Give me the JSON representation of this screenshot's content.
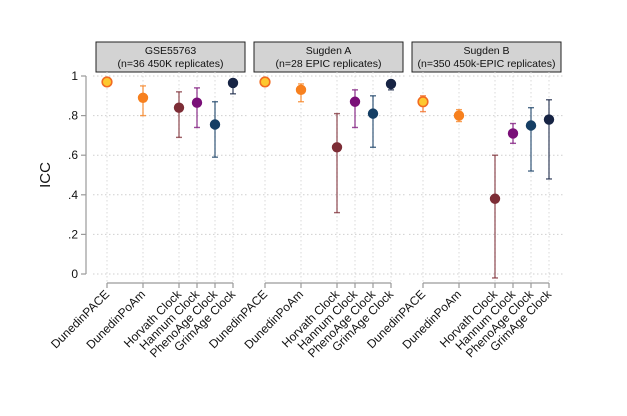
{
  "chart_data": {
    "type": "scatter",
    "subtype": "point-with-error-bars, faceted",
    "ylabel": "ICC",
    "xlabel": "",
    "ylim": [
      0,
      1
    ],
    "yticks": [
      {
        "value": 0,
        "label": "0"
      },
      {
        "value": 0.2,
        "label": ".2"
      },
      {
        "value": 0.4,
        "label": ".4"
      },
      {
        "value": 0.6,
        "label": ".6"
      },
      {
        "value": 0.8,
        "label": ".8"
      },
      {
        "value": 1,
        "label": "1"
      }
    ],
    "grid": true,
    "categories": [
      "DunedinPACE",
      "DunedinPoAm",
      "Horvath Clock",
      "Hannum Clock",
      "PhenoAge Clock",
      "GrimAge Clock"
    ],
    "category_positions": [
      0,
      2,
      4,
      5,
      6,
      7
    ],
    "colors": {
      "DunedinPACE": {
        "fill": "#fdc82f",
        "stroke": "#f26b21"
      },
      "DunedinPoAm": {
        "fill": "#f7801e",
        "stroke": "#f7801e"
      },
      "Horvath Clock": {
        "fill": "#7d2d36",
        "stroke": "#7d2d36"
      },
      "Hannum Clock": {
        "fill": "#7a0f78",
        "stroke": "#7a0f78"
      },
      "PhenoAge Clock": {
        "fill": "#153e64",
        "stroke": "#153e64"
      },
      "GrimAge Clock": {
        "fill": "#172444",
        "stroke": "#172444"
      }
    },
    "panels": [
      {
        "title_line1": "GSE55763",
        "title_line2": "(n=36 450K replicates)",
        "points": [
          {
            "category": "DunedinPACE",
            "icc": 0.97,
            "lower": 0.95,
            "upper": 0.98
          },
          {
            "category": "DunedinPoAm",
            "icc": 0.89,
            "lower": 0.8,
            "upper": 0.95
          },
          {
            "category": "Horvath Clock",
            "icc": 0.84,
            "lower": 0.69,
            "upper": 0.92
          },
          {
            "category": "Hannum Clock",
            "icc": 0.865,
            "lower": 0.74,
            "upper": 0.94
          },
          {
            "category": "PhenoAge Clock",
            "icc": 0.755,
            "lower": 0.59,
            "upper": 0.87
          },
          {
            "category": "GrimAge Clock",
            "icc": 0.965,
            "lower": 0.91,
            "upper": 0.98
          }
        ]
      },
      {
        "title_line1": "Sugden A",
        "title_line2": "(n=28 EPIC replicates)",
        "points": [
          {
            "category": "DunedinPACE",
            "icc": 0.97,
            "lower": 0.95,
            "upper": 0.98
          },
          {
            "category": "DunedinPoAm",
            "icc": 0.93,
            "lower": 0.87,
            "upper": 0.96
          },
          {
            "category": "Horvath Clock",
            "icc": 0.64,
            "lower": 0.31,
            "upper": 0.81
          },
          {
            "category": "Hannum Clock",
            "icc": 0.87,
            "lower": 0.74,
            "upper": 0.93
          },
          {
            "category": "PhenoAge Clock",
            "icc": 0.81,
            "lower": 0.64,
            "upper": 0.9
          },
          {
            "category": "GrimAge Clock",
            "icc": 0.96,
            "lower": 0.93,
            "upper": 0.97
          }
        ]
      },
      {
        "title_line1": "Sugden B",
        "title_line2": "(n=350 450k-EPIC replicates)",
        "points": [
          {
            "category": "DunedinPACE",
            "icc": 0.87,
            "lower": 0.82,
            "upper": 0.9
          },
          {
            "category": "DunedinPoAm",
            "icc": 0.8,
            "lower": 0.77,
            "upper": 0.83
          },
          {
            "category": "Horvath Clock",
            "icc": 0.38,
            "lower": -0.02,
            "upper": 0.6
          },
          {
            "category": "Hannum Clock",
            "icc": 0.71,
            "lower": 0.66,
            "upper": 0.76
          },
          {
            "category": "PhenoAge Clock",
            "icc": 0.75,
            "lower": 0.52,
            "upper": 0.84
          },
          {
            "category": "GrimAge Clock",
            "icc": 0.78,
            "lower": 0.48,
            "upper": 0.88
          }
        ]
      }
    ]
  }
}
